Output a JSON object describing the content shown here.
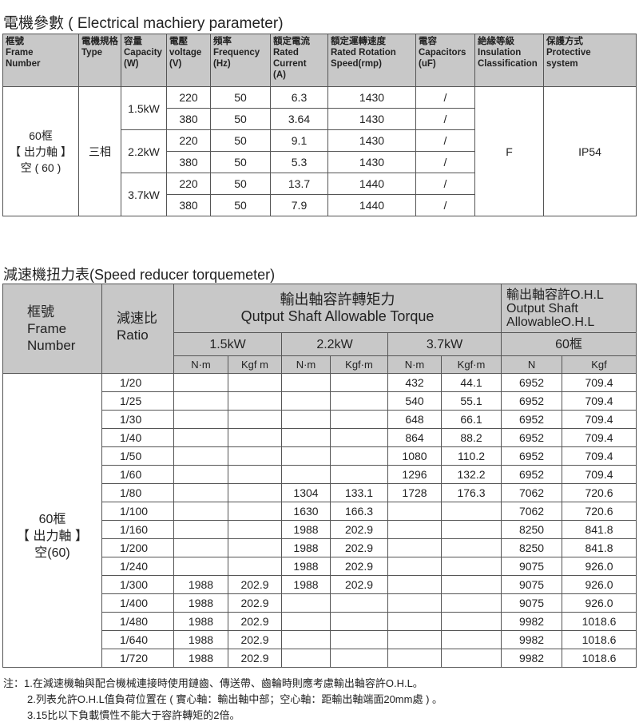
{
  "electrical": {
    "title": "電機參數 ( Electrical machiery parameter)",
    "headers": [
      [
        "框號",
        "Frame",
        "Number"
      ],
      [
        "電機規格",
        "Type"
      ],
      [
        "容量",
        "Capacity",
        "(W)"
      ],
      [
        "電壓",
        "voltage",
        "(V)"
      ],
      [
        "頻率",
        "Frequency",
        "(Hz)"
      ],
      [
        "額定電流",
        "Rated",
        "Current",
        "(A)"
      ],
      [
        "額定運轉速度",
        "Rated Rotation",
        "Speed(rmp)"
      ],
      [
        "電容",
        "Capacitors",
        "(uF)"
      ],
      [
        "絶緣等級",
        "Insulation",
        "Classification"
      ],
      [
        "保護方式",
        "Protective",
        "system"
      ]
    ],
    "frame": [
      "60框",
      "【 出力軸 】",
      "空 ( 60 )"
    ],
    "type": "三相",
    "insulation": "F",
    "protection": "IP54",
    "groups": [
      {
        "capacity": "1.5kW",
        "rows": [
          [
            "220",
            "50",
            "6.3",
            "1430",
            "/"
          ],
          [
            "380",
            "50",
            "3.64",
            "1430",
            "/"
          ]
        ]
      },
      {
        "capacity": "2.2kW",
        "rows": [
          [
            "220",
            "50",
            "9.1",
            "1430",
            "/"
          ],
          [
            "380",
            "50",
            "5.3",
            "1430",
            "/"
          ]
        ]
      },
      {
        "capacity": "3.7kW",
        "rows": [
          [
            "220",
            "50",
            "13.7",
            "1440",
            "/"
          ],
          [
            "380",
            "50",
            "7.9",
            "1440",
            "/"
          ]
        ]
      }
    ]
  },
  "torque": {
    "title": "減速機扭力表(Speed reducer torquemeter)",
    "frame_header": [
      "框號",
      "Frame",
      "Number"
    ],
    "ratio_header": [
      "減速比",
      "Ratio"
    ],
    "torque_header": [
      "輸出軸容許轉矩力",
      "Qutput Shaft Allowable Torque"
    ],
    "ohl_header": [
      "輸出軸容許O.H.L",
      "Output Shaft",
      "AllowableO.H.L"
    ],
    "powers": [
      "1.5kW",
      "2.2kW",
      "3.7kW"
    ],
    "ohl_frame": "60框",
    "units": [
      "N·m",
      "Kgf m",
      "N·m",
      "Kgf·m",
      "N·m",
      "Kgf·m",
      "N",
      "Kgf"
    ],
    "frame": [
      "60框",
      "【 出力軸 】",
      "空(60)"
    ],
    "rows": [
      [
        "1/20",
        "",
        "",
        "",
        "",
        "432",
        "44.1",
        "6952",
        "709.4"
      ],
      [
        "1/25",
        "",
        "",
        "",
        "",
        "540",
        "55.1",
        "6952",
        "709.4"
      ],
      [
        "1/30",
        "",
        "",
        "",
        "",
        "648",
        "66.1",
        "6952",
        "709.4"
      ],
      [
        "1/40",
        "",
        "",
        "",
        "",
        "864",
        "88.2",
        "6952",
        "709.4"
      ],
      [
        "1/50",
        "",
        "",
        "",
        "",
        "1080",
        "110.2",
        "6952",
        "709.4"
      ],
      [
        "1/60",
        "",
        "",
        "",
        "",
        "1296",
        "132.2",
        "6952",
        "709.4"
      ],
      [
        "1/80",
        "",
        "",
        "1304",
        "133.1",
        "1728",
        "176.3",
        "7062",
        "720.6"
      ],
      [
        "1/100",
        "",
        "",
        "1630",
        "166.3",
        "",
        "",
        "7062",
        "720.6"
      ],
      [
        "1/160",
        "",
        "",
        "1988",
        "202.9",
        "",
        "",
        "8250",
        "841.8"
      ],
      [
        "1/200",
        "",
        "",
        "1988",
        "202.9",
        "",
        "",
        "8250",
        "841.8"
      ],
      [
        "1/240",
        "",
        "",
        "1988",
        "202.9",
        "",
        "",
        "9075",
        "926.0"
      ],
      [
        "1/300",
        "1988",
        "202.9",
        "1988",
        "202.9",
        "",
        "",
        "9075",
        "926.0"
      ],
      [
        "1/400",
        "1988",
        "202.9",
        "",
        "",
        "",
        "",
        "9075",
        "926.0"
      ],
      [
        "1/480",
        "1988",
        "202.9",
        "",
        "",
        "",
        "",
        "9982",
        "1018.6"
      ],
      [
        "1/640",
        "1988",
        "202.9",
        "",
        "",
        "",
        "",
        "9982",
        "1018.6"
      ],
      [
        "1/720",
        "1988",
        "202.9",
        "",
        "",
        "",
        "",
        "9982",
        "1018.6"
      ]
    ]
  },
  "notes": [
    "注：1.在減速機軸與配合機械連接時使用鏈齒、傳送帶、齒輪時則應考慮輸出軸容許O.H.L。",
    "2.列表允許O.H.L值負荷位置在 ( 實心軸：輸出軸中部；空心軸：距輸出軸端面20mm處 ) 。",
    "3.15比以下負載慣性不能大于容許轉矩的2倍。"
  ]
}
